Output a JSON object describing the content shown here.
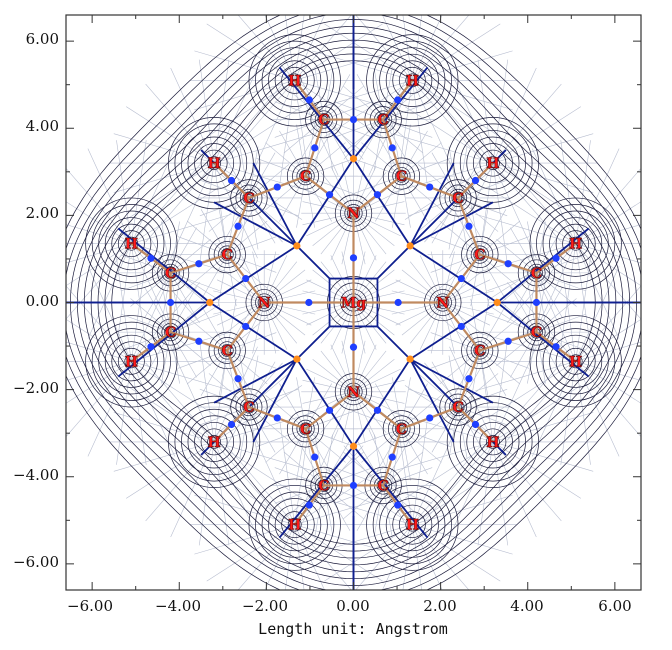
{
  "figure": {
    "x_axis_label": "Length unit: Angstrom",
    "x_ticks": [
      "−6.00",
      "−4.00",
      "−2.00",
      "0.00",
      "2.00",
      "4.00",
      "6.00"
    ],
    "y_ticks": [
      "6.00",
      "4.00",
      "2.00",
      "0.00",
      "−2.00",
      "−4.00",
      "−6.00"
    ],
    "x_range": [
      -6.6,
      6.6
    ],
    "y_range": [
      -6.6,
      6.6
    ],
    "colors": {
      "contour": "#1a1a3a",
      "gradient_lines": "#b8bed0",
      "interbasin_path": "#0f1f8f",
      "bond_path": "#c08a60",
      "bond_cp": "#1f3fff",
      "ring_cp": "#ff8c1a",
      "atom_label": "#ff1a1a"
    },
    "atoms": [
      {
        "label": "Mg",
        "x": 0.0,
        "y": 0.0
      },
      {
        "label": "N",
        "x": 2.05,
        "y": 0.0
      },
      {
        "label": "N",
        "x": -2.05,
        "y": 0.0
      },
      {
        "label": "N",
        "x": 0.0,
        "y": 2.05
      },
      {
        "label": "N",
        "x": 0.0,
        "y": -2.05
      },
      {
        "label": "C",
        "x": 2.9,
        "y": 1.1
      },
      {
        "label": "C",
        "x": 2.9,
        "y": -1.1
      },
      {
        "label": "C",
        "x": -2.9,
        "y": 1.1
      },
      {
        "label": "C",
        "x": -2.9,
        "y": -1.1
      },
      {
        "label": "C",
        "x": 1.1,
        "y": 2.9
      },
      {
        "label": "C",
        "x": -1.1,
        "y": 2.9
      },
      {
        "label": "C",
        "x": 1.1,
        "y": -2.9
      },
      {
        "label": "C",
        "x": -1.1,
        "y": -2.9
      },
      {
        "label": "C",
        "x": 4.2,
        "y": 0.68
      },
      {
        "label": "C",
        "x": 4.2,
        "y": -0.68
      },
      {
        "label": "C",
        "x": -4.2,
        "y": 0.68
      },
      {
        "label": "C",
        "x": -4.2,
        "y": -0.68
      },
      {
        "label": "C",
        "x": 0.68,
        "y": 4.2
      },
      {
        "label": "C",
        "x": -0.68,
        "y": 4.2
      },
      {
        "label": "C",
        "x": 0.68,
        "y": -4.2
      },
      {
        "label": "C",
        "x": -0.68,
        "y": -4.2
      },
      {
        "label": "C",
        "x": 2.4,
        "y": 2.4
      },
      {
        "label": "C",
        "x": -2.4,
        "y": 2.4
      },
      {
        "label": "C",
        "x": 2.4,
        "y": -2.4
      },
      {
        "label": "C",
        "x": -2.4,
        "y": -2.4
      },
      {
        "label": "H",
        "x": 5.1,
        "y": 1.35
      },
      {
        "label": "H",
        "x": 5.1,
        "y": -1.35
      },
      {
        "label": "H",
        "x": -5.1,
        "y": 1.35
      },
      {
        "label": "H",
        "x": -5.1,
        "y": -1.35
      },
      {
        "label": "H",
        "x": 1.35,
        "y": 5.1
      },
      {
        "label": "H",
        "x": -1.35,
        "y": 5.1
      },
      {
        "label": "H",
        "x": 1.35,
        "y": -5.1
      },
      {
        "label": "H",
        "x": -1.35,
        "y": -5.1
      },
      {
        "label": "H",
        "x": 3.2,
        "y": 3.2
      },
      {
        "label": "H",
        "x": -3.2,
        "y": 3.2
      },
      {
        "label": "H",
        "x": 3.2,
        "y": -3.2
      },
      {
        "label": "H",
        "x": -3.2,
        "y": -3.2
      }
    ]
  }
}
